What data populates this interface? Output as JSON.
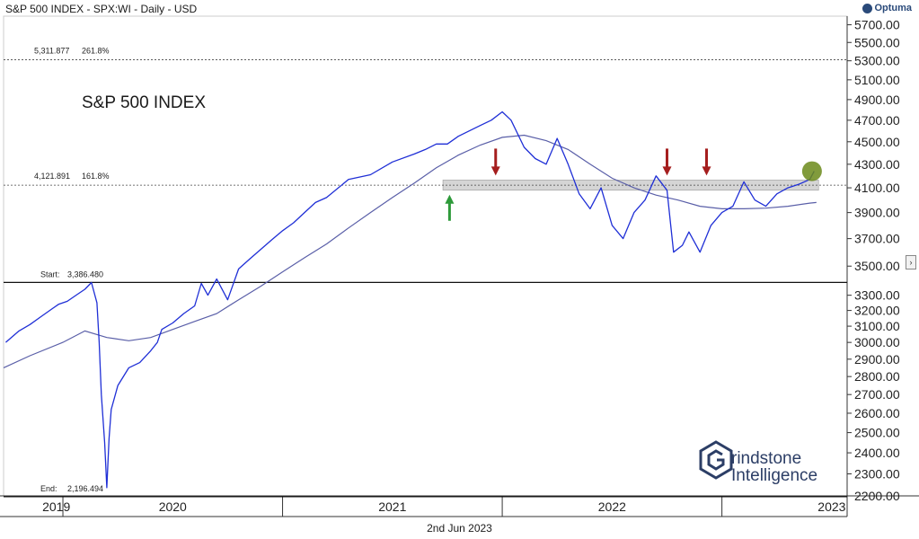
{
  "header": {
    "title": "S&P 500 INDEX - SPX:WI - Daily - USD"
  },
  "logo": {
    "text": "Optuma",
    "icon": "optuma-logo-icon"
  },
  "footer": {
    "date": "2nd Jun 2023"
  },
  "watermark": {
    "line1": "rindstone",
    "line2": "Intelligence"
  },
  "colors": {
    "price": "#1f2fd6",
    "ma": "#5a5fa8",
    "zone": "#bfbfbf",
    "down_arrow": "#a51e1e",
    "up_arrow": "#2e9a3a",
    "circle": "#6b8a1a"
  },
  "chart_data": {
    "type": "line",
    "title": "S&P 500 INDEX",
    "xlabel": "",
    "ylabel": "",
    "scale": "log",
    "ylim": [
      2200,
      5800
    ],
    "y_ticks": [
      5700,
      5500,
      5300,
      5100,
      4900,
      4700,
      4500,
      4300,
      4100,
      3900,
      3700,
      3500,
      3300,
      3200,
      3100,
      3000,
      2900,
      2800,
      2700,
      2600,
      2500,
      2400,
      2300,
      2200
    ],
    "y_tick_labels": [
      "5700.00",
      "5500.00",
      "5300.00",
      "5100.00",
      "4900.00",
      "4700.00",
      "4500.00",
      "4300.00",
      "4100.00",
      "3900.00",
      "3700.00",
      "3500.00",
      "3300.00",
      "3200.00",
      "3100.00",
      "3000.00",
      "2900.00",
      "2800.00",
      "2700.00",
      "2600.00",
      "2500.00",
      "2400.00",
      "2300.00",
      "2200.00"
    ],
    "x_labels": [
      "2019",
      "2020",
      "2021",
      "2022",
      "2023"
    ],
    "x_label_positions": [
      2019.97,
      2020.5,
      2021.5,
      2022.5,
      2023.5
    ],
    "xlim": [
      2019.73,
      2023.57
    ],
    "year_boundaries": [
      2020.0,
      2021.0,
      2022.0,
      2023.0
    ],
    "series": [
      {
        "name": "",
        "x": [
          2019.74,
          2019.8,
          2019.85,
          2019.9,
          2019.95,
          2019.98,
          2020.02,
          2020.06,
          2020.1,
          2020.13,
          2020.155,
          2020.165,
          2020.175,
          2020.19,
          2020.2,
          2020.21,
          2020.22,
          2020.25,
          2020.3,
          2020.35,
          2020.4,
          2020.43,
          2020.45,
          2020.5,
          2020.55,
          2020.6,
          2020.63,
          2020.66,
          2020.7,
          2020.75,
          2020.8,
          2020.85,
          2020.9,
          2020.95,
          2021.0,
          2021.05,
          2021.1,
          2021.15,
          2021.2,
          2021.3,
          2021.4,
          2021.5,
          2021.6,
          2021.65,
          2021.7,
          2021.75,
          2021.8,
          2021.85,
          2021.9,
          2021.95,
          2022.0,
          2022.04,
          2022.1,
          2022.15,
          2022.2,
          2022.25,
          2022.3,
          2022.35,
          2022.4,
          2022.45,
          2022.5,
          2022.55,
          2022.6,
          2022.65,
          2022.7,
          2022.75,
          2022.78,
          2022.82,
          2022.85,
          2022.9,
          2022.95,
          2023.0,
          2023.05,
          2023.1,
          2023.15,
          2023.2,
          2023.25,
          2023.3,
          2023.35,
          2023.4,
          2023.42
        ],
        "y": [
          3000,
          3070,
          3110,
          3160,
          3210,
          3240,
          3260,
          3300,
          3340,
          3386,
          3250,
          3000,
          2700,
          2450,
          2237,
          2470,
          2620,
          2750,
          2850,
          2880,
          2950,
          3000,
          3080,
          3120,
          3180,
          3230,
          3380,
          3300,
          3410,
          3270,
          3480,
          3550,
          3620,
          3690,
          3760,
          3820,
          3900,
          3980,
          4020,
          4170,
          4210,
          4320,
          4390,
          4430,
          4480,
          4480,
          4550,
          4600,
          4650,
          4700,
          4780,
          4700,
          4450,
          4350,
          4300,
          4530,
          4300,
          4050,
          3930,
          4100,
          3800,
          3700,
          3900,
          4000,
          4200,
          4080,
          3600,
          3650,
          3750,
          3600,
          3800,
          3900,
          3950,
          4150,
          4000,
          3950,
          4050,
          4100,
          4130,
          4170,
          4240
        ]
      },
      {
        "name": "",
        "x": [
          2019.73,
          2019.85,
          2020.0,
          2020.1,
          2020.2,
          2020.3,
          2020.4,
          2020.5,
          2020.6,
          2020.7,
          2020.8,
          2020.9,
          2021.0,
          2021.1,
          2021.2,
          2021.3,
          2021.4,
          2021.5,
          2021.6,
          2021.7,
          2021.8,
          2021.9,
          2022.0,
          2022.1,
          2022.2,
          2022.3,
          2022.4,
          2022.5,
          2022.6,
          2022.7,
          2022.8,
          2022.9,
          2023.0,
          2023.1,
          2023.2,
          2023.3,
          2023.4,
          2023.43
        ],
        "y": [
          2850,
          2920,
          3000,
          3070,
          3030,
          3010,
          3030,
          3080,
          3130,
          3180,
          3270,
          3360,
          3460,
          3560,
          3660,
          3780,
          3900,
          4020,
          4140,
          4270,
          4380,
          4470,
          4540,
          4560,
          4510,
          4430,
          4300,
          4180,
          4100,
          4040,
          4000,
          3950,
          3930,
          3930,
          3935,
          3950,
          3975,
          3980
        ]
      }
    ],
    "annotations": [
      {
        "text": "5,311.877",
        "value": 5311.877,
        "ratio": "261.8%",
        "style": "dashed"
      },
      {
        "text": "4,121.891",
        "value": 4121.891,
        "ratio": "161.8%",
        "style": "dashed"
      },
      {
        "text": "Start:",
        "value_text": "3,386.480",
        "value": 3386.48,
        "style": "solid"
      },
      {
        "text": "End:",
        "value_text": "2,196.494",
        "value": 2196.494,
        "style": "solid"
      }
    ],
    "zone": {
      "from": 4080,
      "to": 4165,
      "x_start": 2021.73,
      "x_end": 2023.44
    },
    "down_arrows": [
      2021.97,
      2022.75,
      2022.93
    ],
    "up_arrows": [
      2021.76
    ],
    "highlight": {
      "x": 2023.41,
      "y": 4240
    }
  }
}
